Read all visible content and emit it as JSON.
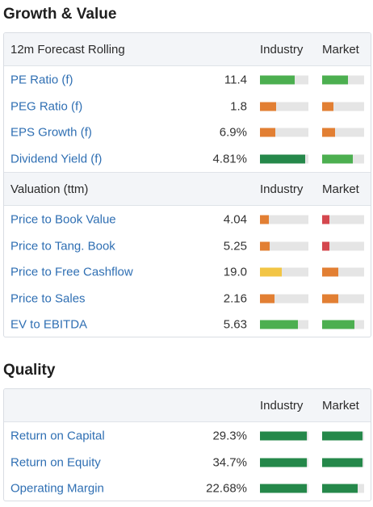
{
  "colors": {
    "dark_green": "#25884a",
    "light_green": "#4caf50",
    "orange": "#e27f33",
    "yellow": "#f2c545",
    "red": "#d4474e",
    "track": "#e5e5e5",
    "link": "#2f6fb3"
  },
  "growth": {
    "title": "Growth & Value",
    "forecast": {
      "header": {
        "label": "12m Forecast Rolling",
        "industry": "Industry",
        "market": "Market"
      },
      "rows": [
        {
          "label": "PE Ratio (f)",
          "value": "11.4",
          "industry": 0.72,
          "industry_color": "light_green",
          "market": 0.62,
          "market_color": "light_green"
        },
        {
          "label": "PEG Ratio (f)",
          "value": "1.8",
          "industry": 0.33,
          "industry_color": "orange",
          "market": 0.27,
          "market_color": "orange"
        },
        {
          "label": "EPS Growth (f)",
          "value": "6.9%",
          "industry": 0.31,
          "industry_color": "orange",
          "market": 0.31,
          "market_color": "orange"
        },
        {
          "label": "Dividend Yield (f)",
          "value": "4.81%",
          "industry": 0.93,
          "industry_color": "dark_green",
          "market": 0.74,
          "market_color": "light_green"
        }
      ]
    },
    "valuation": {
      "header": {
        "label": "Valuation (ttm)",
        "industry": "Industry",
        "market": "Market"
      },
      "rows": [
        {
          "label": "Price to Book Value",
          "value": "4.04",
          "industry": 0.18,
          "industry_color": "orange",
          "market": 0.17,
          "market_color": "red"
        },
        {
          "label": "Price to Tang. Book",
          "value": "5.25",
          "industry": 0.2,
          "industry_color": "orange",
          "market": 0.17,
          "market_color": "red"
        },
        {
          "label": "Price to Free Cashflow",
          "value": "19.0",
          "industry": 0.45,
          "industry_color": "yellow",
          "market": 0.38,
          "market_color": "orange"
        },
        {
          "label": "Price to Sales",
          "value": "2.16",
          "industry": 0.3,
          "industry_color": "orange",
          "market": 0.38,
          "market_color": "orange"
        },
        {
          "label": "EV to EBITDA",
          "value": "5.63",
          "industry": 0.78,
          "industry_color": "light_green",
          "market": 0.77,
          "market_color": "light_green"
        }
      ]
    }
  },
  "quality": {
    "title": "Quality",
    "header": {
      "label": "",
      "industry": "Industry",
      "market": "Market"
    },
    "rows": [
      {
        "label": "Return on Capital",
        "value": "29.3%",
        "industry": 0.97,
        "industry_color": "dark_green",
        "market": 0.96,
        "market_color": "dark_green"
      },
      {
        "label": "Return on Equity",
        "value": "34.7%",
        "industry": 0.97,
        "industry_color": "dark_green",
        "market": 0.96,
        "market_color": "dark_green"
      },
      {
        "label": "Operating Margin",
        "value": "22.68%",
        "industry": 0.97,
        "industry_color": "dark_green",
        "market": 0.85,
        "market_color": "dark_green"
      }
    ]
  }
}
